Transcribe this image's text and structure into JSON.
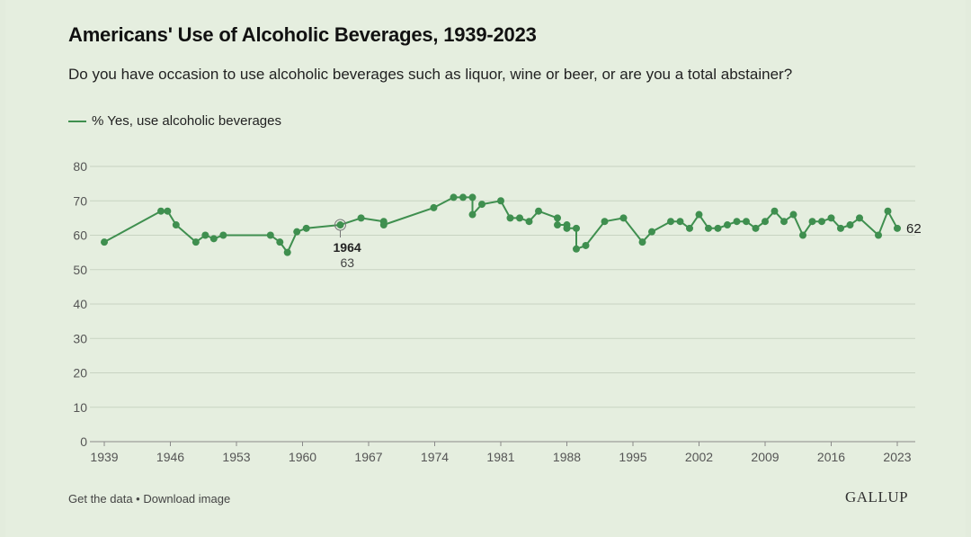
{
  "header": {
    "title": "Americans' Use of Alcoholic Beverages, 1939-2023",
    "subtitle": "Do you have occasion to use alcoholic beverages such as liquor, wine or beer, or are you a total abstainer?"
  },
  "legend": {
    "label": "% Yes, use alcoholic beverages"
  },
  "footer": {
    "get_data": "Get the data",
    "separator": " • ",
    "download": "Download image",
    "brand": "GALLUP"
  },
  "colors": {
    "line": "#3f8f4f",
    "grid": "#c8d3c2",
    "background": "#e5eedf"
  },
  "chart_data": {
    "type": "line",
    "title": "Americans' Use of Alcoholic Beverages, 1939-2023",
    "xlabel": "",
    "ylabel": "",
    "ylim": [
      0,
      80
    ],
    "xlim": [
      1939,
      2023
    ],
    "yticks": [
      0,
      10,
      20,
      30,
      40,
      50,
      60,
      70,
      80
    ],
    "xticks": [
      1939,
      1946,
      1953,
      1960,
      1967,
      1974,
      1981,
      1988,
      1995,
      2002,
      2009,
      2016,
      2023
    ],
    "grid": true,
    "legend_position": "top-left",
    "series": [
      {
        "name": "% Yes, use alcoholic beverages",
        "points": [
          [
            1939,
            58
          ],
          [
            1945,
            67
          ],
          [
            1945.7,
            67
          ],
          [
            1946.6,
            63
          ],
          [
            1948.7,
            58
          ],
          [
            1949.7,
            60
          ],
          [
            1950.6,
            59
          ],
          [
            1951.6,
            60
          ],
          [
            1956.6,
            60
          ],
          [
            1957.6,
            58
          ],
          [
            1958.4,
            55
          ],
          [
            1959.4,
            61
          ],
          [
            1960.4,
            62
          ],
          [
            1964,
            63
          ],
          [
            1966.2,
            65
          ],
          [
            1968.6,
            64
          ],
          [
            1968.6,
            63
          ],
          [
            1973.9,
            68
          ],
          [
            1976,
            71
          ],
          [
            1977,
            71
          ],
          [
            1978,
            71
          ],
          [
            1978,
            66
          ],
          [
            1979,
            69
          ],
          [
            1981,
            70
          ],
          [
            1982,
            65
          ],
          [
            1983,
            65
          ],
          [
            1984,
            64
          ],
          [
            1985,
            67
          ],
          [
            1987,
            65
          ],
          [
            1987,
            63
          ],
          [
            1988,
            63
          ],
          [
            1988,
            62
          ],
          [
            1989,
            62
          ],
          [
            1989,
            56
          ],
          [
            1990,
            57
          ],
          [
            1992,
            64
          ],
          [
            1994,
            65
          ],
          [
            1996,
            58
          ],
          [
            1997,
            61
          ],
          [
            1999,
            64
          ],
          [
            2000,
            64
          ],
          [
            2001,
            62
          ],
          [
            2002,
            66
          ],
          [
            2003,
            62
          ],
          [
            2004,
            62
          ],
          [
            2005,
            63
          ],
          [
            2006,
            64
          ],
          [
            2007,
            64
          ],
          [
            2008,
            62
          ],
          [
            2009,
            64
          ],
          [
            2010,
            67
          ],
          [
            2011,
            64
          ],
          [
            2012,
            66
          ],
          [
            2013,
            60
          ],
          [
            2014,
            64
          ],
          [
            2015,
            64
          ],
          [
            2016,
            65
          ],
          [
            2017,
            62
          ],
          [
            2018,
            63
          ],
          [
            2019,
            65
          ],
          [
            2021,
            60
          ],
          [
            2022,
            67
          ],
          [
            2023,
            62
          ]
        ]
      }
    ],
    "annotations": [
      {
        "x": 1964,
        "y": 63,
        "label": "1964",
        "value": "63"
      },
      {
        "x": 2023,
        "y": 62,
        "label": "62"
      }
    ]
  }
}
